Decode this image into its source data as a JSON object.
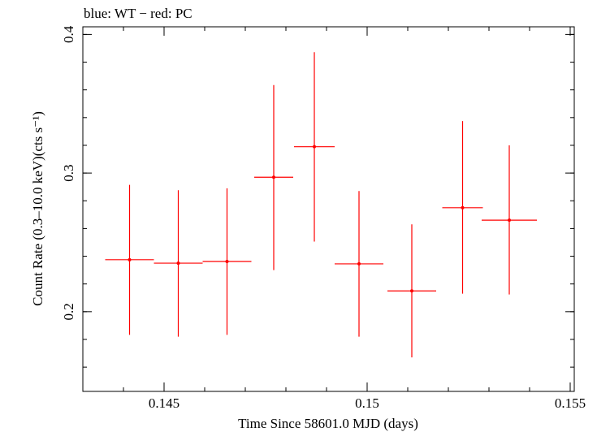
{
  "chart_data": {
    "type": "scatter",
    "title": "blue: WT − red: PC",
    "xlabel": "Time Since 58601.0 MJD (days)",
    "ylabel": "Count Rate (0.3–10.0 keV)(cts s⁻¹)",
    "xlim": [
      0.143,
      0.1551
    ],
    "ylim": [
      0.1425,
      0.4055
    ],
    "x_ticks": [
      {
        "value": 0.145,
        "label": "0.145"
      },
      {
        "value": 0.15,
        "label": "0.15"
      },
      {
        "value": 0.155,
        "label": "0.155"
      }
    ],
    "y_ticks": [
      {
        "value": 0.2,
        "label": "0.2"
      },
      {
        "value": 0.3,
        "label": "0.3"
      },
      {
        "value": 0.4,
        "label": "0.4"
      }
    ],
    "series": [
      {
        "name": "PC",
        "color": "#ff0000",
        "points": [
          {
            "x": 0.14415,
            "xerr": 0.0006,
            "y": 0.2375,
            "ylo": 0.1833,
            "yhi": 0.2915
          },
          {
            "x": 0.14535,
            "xerr": 0.0006,
            "y": 0.235,
            "ylo": 0.182,
            "yhi": 0.2876
          },
          {
            "x": 0.14655,
            "xerr": 0.0006,
            "y": 0.2362,
            "ylo": 0.1833,
            "yhi": 0.289
          },
          {
            "x": 0.1477,
            "xerr": 0.00048,
            "y": 0.297,
            "ylo": 0.23,
            "yhi": 0.3635
          },
          {
            "x": 0.1487,
            "xerr": 0.0005,
            "y": 0.319,
            "ylo": 0.2506,
            "yhi": 0.3872
          },
          {
            "x": 0.1498,
            "xerr": 0.0006,
            "y": 0.2345,
            "ylo": 0.182,
            "yhi": 0.287
          },
          {
            "x": 0.1511,
            "xerr": 0.0006,
            "y": 0.215,
            "ylo": 0.167,
            "yhi": 0.263
          },
          {
            "x": 0.15235,
            "xerr": 0.0005,
            "y": 0.275,
            "ylo": 0.213,
            "yhi": 0.3375
          },
          {
            "x": 0.1535,
            "xerr": 0.00068,
            "y": 0.266,
            "ylo": 0.2124,
            "yhi": 0.32
          }
        ]
      }
    ]
  }
}
